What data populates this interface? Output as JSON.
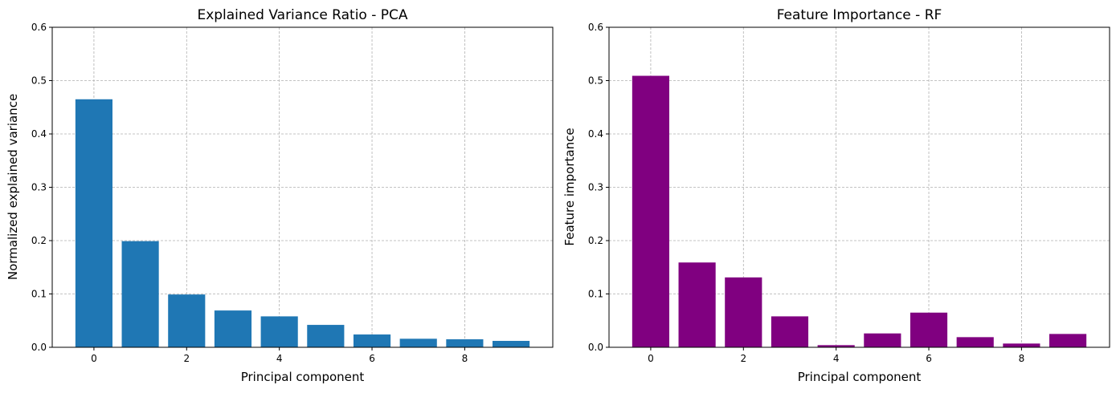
{
  "chart_data": [
    {
      "type": "bar",
      "title": "Explained Variance Ratio - PCA",
      "xlabel": "Principal component",
      "ylabel": "Normalized explained variance",
      "x": [
        0,
        1,
        2,
        3,
        4,
        5,
        6,
        7,
        8,
        9
      ],
      "values": [
        0.465,
        0.199,
        0.099,
        0.069,
        0.058,
        0.042,
        0.024,
        0.016,
        0.015,
        0.012
      ],
      "xticks": [
        0,
        2,
        4,
        6,
        8
      ],
      "yticks": [
        0.0,
        0.1,
        0.2,
        0.3,
        0.4,
        0.5,
        0.6
      ],
      "xlim": [
        -0.9,
        9.9
      ],
      "ylim": [
        0,
        0.6
      ],
      "color": "#1f77b4",
      "grid": true
    },
    {
      "type": "bar",
      "title": "Feature Importance - RF",
      "xlabel": "Principal component",
      "ylabel": "Feature importance",
      "x": [
        0,
        1,
        2,
        3,
        4,
        5,
        6,
        7,
        8,
        9
      ],
      "values": [
        0.509,
        0.159,
        0.131,
        0.058,
        0.004,
        0.026,
        0.065,
        0.019,
        0.007,
        0.025
      ],
      "xticks": [
        0,
        2,
        4,
        6,
        8
      ],
      "yticks": [
        0.0,
        0.1,
        0.2,
        0.3,
        0.4,
        0.5,
        0.6
      ],
      "xlim": [
        -0.9,
        9.9
      ],
      "ylim": [
        0,
        0.6
      ],
      "color": "#800080",
      "grid": true
    }
  ]
}
